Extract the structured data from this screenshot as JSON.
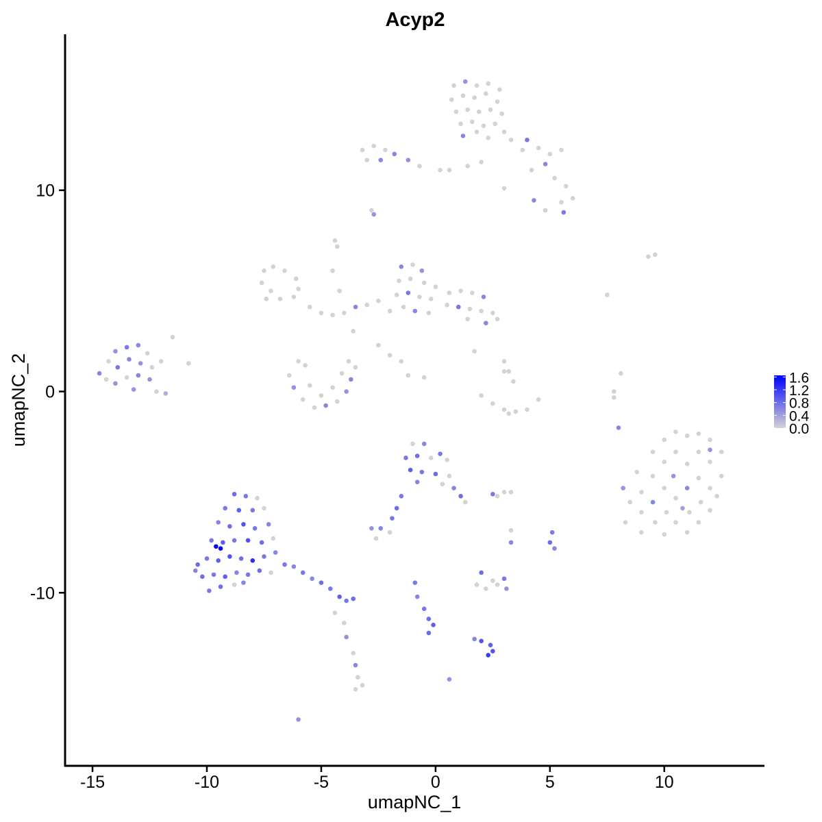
{
  "chart_data": {
    "type": "scatter",
    "title": "Acyp2",
    "xlabel": "umapNC_1",
    "ylabel": "umapNC_2",
    "xlim": [
      -16.2,
      14.35
    ],
    "ylim": [
      -18.6,
      17.75
    ],
    "xticks": [
      -15,
      -10,
      -5,
      0,
      5,
      10
    ],
    "yticks": [
      -10,
      0,
      10
    ],
    "grid": false,
    "color_scale": {
      "low": "#d3d3d3",
      "high": "#0000ff",
      "limits": [
        0,
        1.65
      ],
      "breaks": [
        "0.0",
        "0.4",
        "0.8",
        "1.2",
        "1.6"
      ]
    },
    "legend_position": "right",
    "point_fields": [
      "umapNC_1",
      "umapNC_2",
      "expression"
    ],
    "points": [
      [
        0.8,
        15.2,
        0
      ],
      [
        1.3,
        15.4,
        0.5
      ],
      [
        1.8,
        15.2,
        0
      ],
      [
        2.3,
        15.3,
        0
      ],
      [
        2.8,
        15.0,
        0
      ],
      [
        0.7,
        14.5,
        0
      ],
      [
        1.2,
        14.7,
        0
      ],
      [
        1.7,
        14.6,
        0
      ],
      [
        2.2,
        14.8,
        0
      ],
      [
        2.7,
        14.4,
        0
      ],
      [
        0.9,
        13.9,
        0
      ],
      [
        1.4,
        14.0,
        0
      ],
      [
        1.9,
        13.9,
        0
      ],
      [
        2.4,
        14.0,
        0
      ],
      [
        2.9,
        13.8,
        0
      ],
      [
        1.1,
        13.3,
        0
      ],
      [
        1.6,
        13.4,
        0
      ],
      [
        2.1,
        13.2,
        0
      ],
      [
        2.6,
        13.3,
        0
      ],
      [
        1.2,
        12.7,
        0.6
      ],
      [
        1.8,
        12.9,
        0
      ],
      [
        2.3,
        12.6,
        0
      ],
      [
        3.0,
        12.9,
        0
      ],
      [
        3.3,
        12.5,
        0
      ],
      [
        3.8,
        12.0,
        0
      ],
      [
        4.0,
        12.5,
        0.7
      ],
      [
        4.5,
        12.1,
        0
      ],
      [
        5.0,
        11.8,
        0
      ],
      [
        5.5,
        12.0,
        0
      ],
      [
        4.8,
        11.3,
        0.6
      ],
      [
        4.2,
        11.0,
        0
      ],
      [
        5.2,
        10.6,
        0
      ],
      [
        5.7,
        10.2,
        0
      ],
      [
        6.0,
        9.6,
        0
      ],
      [
        5.5,
        9.4,
        0
      ],
      [
        4.3,
        9.5,
        0.6
      ],
      [
        4.8,
        9.0,
        0
      ],
      [
        5.6,
        8.9,
        0.7
      ],
      [
        3.0,
        10.1,
        0
      ],
      [
        2.0,
        11.4,
        0
      ],
      [
        1.4,
        11.2,
        0
      ],
      [
        0.6,
        11.0,
        0
      ],
      [
        0.2,
        11.0,
        0
      ],
      [
        -3.2,
        12.0,
        0
      ],
      [
        -2.7,
        12.2,
        0
      ],
      [
        -2.2,
        12.0,
        0
      ],
      [
        -1.8,
        11.8,
        0.6
      ],
      [
        -3.0,
        11.5,
        0
      ],
      [
        -2.4,
        11.5,
        0.6
      ],
      [
        -1.2,
        11.5,
        0.5
      ],
      [
        -0.7,
        11.2,
        0
      ],
      [
        -2.8,
        9.0,
        0
      ],
      [
        -2.7,
        8.8,
        0.5
      ],
      [
        -4.4,
        7.5,
        0
      ],
      [
        -4.3,
        7.2,
        0
      ],
      [
        -7.5,
        6.0,
        0
      ],
      [
        -7.1,
        6.2,
        0
      ],
      [
        -6.6,
        6.0,
        0
      ],
      [
        -6.1,
        5.6,
        0
      ],
      [
        -7.6,
        5.4,
        0
      ],
      [
        -7.2,
        5.0,
        0
      ],
      [
        -6.8,
        4.6,
        0
      ],
      [
        -6.2,
        4.7,
        0
      ],
      [
        -6.0,
        5.1,
        0
      ],
      [
        -7.4,
        4.6,
        0
      ],
      [
        -5.5,
        4.2,
        0
      ],
      [
        -5.0,
        3.9,
        0
      ],
      [
        -4.5,
        3.8,
        0
      ],
      [
        -4.0,
        3.9,
        0
      ],
      [
        -3.5,
        4.2,
        0.6
      ],
      [
        -3.0,
        4.3,
        0
      ],
      [
        -2.5,
        4.5,
        0
      ],
      [
        -2.0,
        4.0,
        0
      ],
      [
        -4.5,
        6.0,
        0
      ],
      [
        -4.2,
        5.0,
        0
      ],
      [
        -3.6,
        3.0,
        0
      ],
      [
        -2.5,
        2.3,
        0
      ],
      [
        -2.0,
        1.8,
        0
      ],
      [
        -3.8,
        1.5,
        0
      ],
      [
        -1.5,
        6.2,
        0.6
      ],
      [
        -1.0,
        6.3,
        0
      ],
      [
        -0.6,
        6.0,
        0.5
      ],
      [
        -1.6,
        5.5,
        0
      ],
      [
        -1.1,
        5.6,
        0
      ],
      [
        -0.5,
        5.4,
        0
      ],
      [
        0.0,
        5.2,
        0
      ],
      [
        -1.7,
        4.8,
        0
      ],
      [
        -1.2,
        4.9,
        0.7
      ],
      [
        -0.7,
        4.7,
        0
      ],
      [
        -0.2,
        4.6,
        0
      ],
      [
        -1.4,
        4.2,
        0
      ],
      [
        -0.9,
        4.0,
        0.6
      ],
      [
        -0.3,
        3.9,
        0
      ],
      [
        0.6,
        4.9,
        0
      ],
      [
        1.1,
        5.0,
        0
      ],
      [
        1.6,
        4.9,
        0
      ],
      [
        2.1,
        4.7,
        0.6
      ],
      [
        0.5,
        4.3,
        0
      ],
      [
        1.0,
        4.2,
        0.7
      ],
      [
        1.5,
        4.1,
        0
      ],
      [
        2.0,
        4.0,
        0
      ],
      [
        2.5,
        3.9,
        0
      ],
      [
        2.2,
        3.4,
        0.6
      ],
      [
        1.4,
        3.6,
        0
      ],
      [
        2.7,
        3.6,
        0
      ],
      [
        3.0,
        1.5,
        0
      ],
      [
        3.2,
        1.0,
        0
      ],
      [
        3.4,
        0.5,
        0
      ],
      [
        1.7,
        2.0,
        0
      ],
      [
        -1.5,
        1.5,
        0
      ],
      [
        -1.2,
        0.8,
        0
      ],
      [
        -0.5,
        0.7,
        0
      ],
      [
        7.5,
        4.8,
        0
      ],
      [
        9.3,
        6.7,
        0
      ],
      [
        9.6,
        6.8,
        0
      ],
      [
        8.1,
        0.9,
        0
      ],
      [
        7.8,
        0.0,
        0
      ],
      [
        7.8,
        -0.3,
        0
      ],
      [
        8.0,
        -1.8,
        0.6
      ],
      [
        -14.7,
        0.9,
        0.6
      ],
      [
        -14.3,
        1.5,
        0
      ],
      [
        -14.0,
        2.0,
        0.5
      ],
      [
        -13.5,
        2.2,
        0.7
      ],
      [
        -13.0,
        2.3,
        0.6
      ],
      [
        -12.6,
        1.9,
        0
      ],
      [
        -14.4,
        0.6,
        0
      ],
      [
        -13.9,
        1.2,
        0.7
      ],
      [
        -13.4,
        1.6,
        0.6
      ],
      [
        -12.9,
        1.4,
        0.5
      ],
      [
        -12.4,
        1.2,
        0
      ],
      [
        -14.0,
        0.4,
        0.5
      ],
      [
        -13.5,
        0.7,
        0
      ],
      [
        -13.0,
        0.8,
        0.6
      ],
      [
        -12.5,
        0.6,
        0.5
      ],
      [
        -13.2,
        0.1,
        0.5
      ],
      [
        -12.2,
        0.0,
        0
      ],
      [
        -11.8,
        -0.1,
        0.3
      ],
      [
        -11.5,
        2.7,
        0
      ],
      [
        -12.0,
        1.5,
        0
      ],
      [
        -10.8,
        1.4,
        0
      ],
      [
        -6.4,
        0.8,
        0
      ],
      [
        -6.2,
        0.2,
        0.5
      ],
      [
        -5.8,
        -0.4,
        0
      ],
      [
        -5.3,
        -0.8,
        0
      ],
      [
        -4.8,
        -0.7,
        0.6
      ],
      [
        -4.3,
        -0.5,
        0
      ],
      [
        -3.9,
        0.0,
        0.5
      ],
      [
        -3.7,
        0.6,
        0.6
      ],
      [
        -4.1,
        0.9,
        0
      ],
      [
        -5.7,
        1.3,
        0
      ],
      [
        -6.0,
        1.5,
        0
      ],
      [
        -5.0,
        -0.2,
        0
      ],
      [
        -4.5,
        0.2,
        0
      ],
      [
        -5.5,
        0.3,
        0
      ],
      [
        -3.5,
        1.2,
        0
      ],
      [
        2.0,
        -0.2,
        0
      ],
      [
        2.5,
        -0.6,
        0
      ],
      [
        3.0,
        -0.9,
        0
      ],
      [
        3.5,
        -1.0,
        0
      ],
      [
        4.0,
        -0.9,
        0
      ],
      [
        4.5,
        -0.4,
        0
      ],
      [
        3.2,
        -1.1,
        0
      ],
      [
        3.0,
        1.0,
        0
      ],
      [
        8.2,
        -4.8,
        0.5
      ],
      [
        8.5,
        -5.5,
        0
      ],
      [
        8.3,
        -6.5,
        0
      ],
      [
        8.8,
        -4.0,
        0
      ],
      [
        9.0,
        -5.0,
        0
      ],
      [
        9.0,
        -6.0,
        0
      ],
      [
        9.0,
        -7.0,
        0
      ],
      [
        9.5,
        -3.0,
        0
      ],
      [
        9.5,
        -4.2,
        0
      ],
      [
        9.5,
        -5.5,
        0.6
      ],
      [
        9.6,
        -6.5,
        0
      ],
      [
        10.0,
        -2.4,
        0
      ],
      [
        10.0,
        -3.5,
        0
      ],
      [
        10.0,
        -4.8,
        0
      ],
      [
        10.1,
        -6.0,
        0
      ],
      [
        10.0,
        -7.1,
        0
      ],
      [
        10.5,
        -2.0,
        0
      ],
      [
        10.5,
        -3.0,
        0
      ],
      [
        10.4,
        -4.2,
        0.5
      ],
      [
        10.5,
        -5.3,
        0
      ],
      [
        10.5,
        -6.5,
        0
      ],
      [
        11.0,
        -2.2,
        0
      ],
      [
        11.0,
        -3.6,
        0
      ],
      [
        11.0,
        -4.8,
        0.6
      ],
      [
        11.1,
        -6.0,
        0
      ],
      [
        11.0,
        -7.0,
        0
      ],
      [
        11.5,
        -2.1,
        0
      ],
      [
        11.5,
        -3.0,
        0
      ],
      [
        11.5,
        -4.3,
        0
      ],
      [
        11.6,
        -5.5,
        0
      ],
      [
        11.5,
        -6.5,
        0
      ],
      [
        12.0,
        -2.4,
        0
      ],
      [
        12.0,
        -3.5,
        0
      ],
      [
        12.0,
        -4.8,
        0
      ],
      [
        12.0,
        -5.9,
        0
      ],
      [
        12.5,
        -3.0,
        0
      ],
      [
        12.5,
        -4.2,
        0
      ],
      [
        12.3,
        -5.2,
        0
      ],
      [
        12.0,
        -2.9,
        0.5
      ],
      [
        10.8,
        -5.8,
        0.4
      ],
      [
        -8.8,
        -5.1,
        0.8
      ],
      [
        -8.3,
        -5.2,
        0.7
      ],
      [
        -7.8,
        -5.3,
        0
      ],
      [
        -9.2,
        -5.8,
        0.7
      ],
      [
        -8.6,
        -5.9,
        0.9
      ],
      [
        -8.0,
        -5.9,
        0.7
      ],
      [
        -7.5,
        -5.8,
        0
      ],
      [
        -9.5,
        -6.5,
        0.6
      ],
      [
        -9.0,
        -6.7,
        0.8
      ],
      [
        -8.4,
        -6.6,
        1.0
      ],
      [
        -7.9,
        -6.8,
        0.7
      ],
      [
        -7.3,
        -6.6,
        0.6
      ],
      [
        -9.8,
        -7.4,
        0.7
      ],
      [
        -9.3,
        -7.5,
        0.9
      ],
      [
        -8.8,
        -7.4,
        0.7
      ],
      [
        -8.2,
        -7.4,
        1.0
      ],
      [
        -7.6,
        -7.5,
        0.8
      ],
      [
        -7.1,
        -7.3,
        0
      ],
      [
        -9.6,
        -7.7,
        1.6
      ],
      [
        -9.4,
        -7.8,
        1.6
      ],
      [
        -10.4,
        -8.6,
        0.8
      ],
      [
        -10.0,
        -8.3,
        0.7
      ],
      [
        -9.5,
        -8.4,
        0.9
      ],
      [
        -9.0,
        -8.2,
        1.0
      ],
      [
        -8.5,
        -8.3,
        0.8
      ],
      [
        -8.0,
        -8.4,
        1.3
      ],
      [
        -7.5,
        -8.2,
        0.7
      ],
      [
        -7.0,
        -8.0,
        0.6
      ],
      [
        -6.6,
        -8.6,
        0.7
      ],
      [
        -10.2,
        -9.2,
        0.8
      ],
      [
        -9.7,
        -9.1,
        0.7
      ],
      [
        -9.2,
        -9.2,
        0.9
      ],
      [
        -8.7,
        -9.0,
        0.6
      ],
      [
        -8.2,
        -9.1,
        0.7
      ],
      [
        -7.7,
        -8.9,
        0.8
      ],
      [
        -7.2,
        -9.0,
        0
      ],
      [
        -9.9,
        -9.9,
        0.7
      ],
      [
        -9.4,
        -9.7,
        0.8
      ],
      [
        -8.8,
        -9.6,
        0
      ],
      [
        -8.4,
        -9.5,
        0.6
      ],
      [
        -10.5,
        -8.9,
        0.6
      ],
      [
        -6.2,
        -8.7,
        0.6
      ],
      [
        -5.8,
        -9.0,
        0.7
      ],
      [
        -5.4,
        -9.3,
        0.6
      ],
      [
        -5.0,
        -9.5,
        0.8
      ],
      [
        -4.6,
        -9.8,
        0.7
      ],
      [
        -4.2,
        -10.2,
        0.9
      ],
      [
        -3.9,
        -10.4,
        0.7
      ],
      [
        -3.6,
        -10.3,
        0.8
      ],
      [
        -4.4,
        -11.0,
        0
      ],
      [
        -4.0,
        -11.5,
        0
      ],
      [
        -3.9,
        -12.2,
        0.5
      ],
      [
        -3.6,
        -13.0,
        0
      ],
      [
        -3.5,
        -13.6,
        0.6
      ],
      [
        -3.4,
        -14.2,
        0
      ],
      [
        -3.5,
        -14.8,
        0
      ],
      [
        -3.2,
        -14.6,
        0
      ],
      [
        -6.0,
        -16.3,
        0.5
      ],
      [
        -1.0,
        -2.6,
        0
      ],
      [
        -0.5,
        -2.6,
        0.6
      ],
      [
        0.2,
        -3.1,
        0.7
      ],
      [
        -1.3,
        -3.3,
        0.7
      ],
      [
        -0.8,
        -3.2,
        0.8
      ],
      [
        -0.2,
        -3.3,
        0
      ],
      [
        0.5,
        -3.4,
        0
      ],
      [
        -1.1,
        -3.9,
        0.9
      ],
      [
        -0.6,
        -4.0,
        0.7
      ],
      [
        0.0,
        -4.1,
        0.8
      ],
      [
        0.6,
        -4.2,
        0
      ],
      [
        -0.8,
        -4.5,
        0.6
      ],
      [
        0.3,
        -4.6,
        0
      ],
      [
        0.8,
        -4.8,
        0.6
      ],
      [
        1.1,
        -5.2,
        0.8
      ],
      [
        1.3,
        -5.5,
        0
      ],
      [
        -1.5,
        -5.2,
        0.7
      ],
      [
        -1.7,
        -5.8,
        0.8
      ],
      [
        -1.9,
        -6.3,
        0.7
      ],
      [
        -2.8,
        -6.8,
        0.5
      ],
      [
        -2.4,
        -6.8,
        0.6
      ],
      [
        -2.0,
        -7.0,
        0
      ],
      [
        -2.6,
        -7.3,
        0
      ],
      [
        2.5,
        -5.1,
        0.7
      ],
      [
        3.0,
        -5.0,
        0
      ],
      [
        3.3,
        -5.0,
        0
      ],
      [
        2.7,
        -5.2,
        0
      ],
      [
        3.3,
        -6.9,
        0
      ],
      [
        3.3,
        -7.5,
        0.6
      ],
      [
        5.1,
        -7.0,
        0.7
      ],
      [
        5.0,
        -7.5,
        0.8
      ],
      [
        5.2,
        -7.8,
        0.6
      ],
      [
        -0.9,
        -9.5,
        0.7
      ],
      [
        -0.8,
        -10.2,
        0.6
      ],
      [
        -0.5,
        -10.8,
        0.7
      ],
      [
        -0.3,
        -11.3,
        0.8
      ],
      [
        -0.1,
        -11.6,
        0.9
      ],
      [
        -0.3,
        -12.0,
        0.8
      ],
      [
        1.8,
        -9.6,
        0
      ],
      [
        2.2,
        -9.8,
        0
      ],
      [
        2.7,
        -9.6,
        0
      ],
      [
        3.1,
        -9.8,
        0.5
      ],
      [
        3.0,
        -9.3,
        0.7
      ],
      [
        2.0,
        -9.0,
        0.8
      ],
      [
        2.5,
        -9.4,
        0
      ],
      [
        1.7,
        -12.3,
        0.6
      ],
      [
        2.0,
        -12.4,
        1.0
      ],
      [
        2.4,
        -12.6,
        0.9
      ],
      [
        2.5,
        -12.9,
        1.0
      ],
      [
        2.3,
        -13.1,
        1.2
      ],
      [
        0.6,
        -14.3,
        0.5
      ]
    ]
  }
}
